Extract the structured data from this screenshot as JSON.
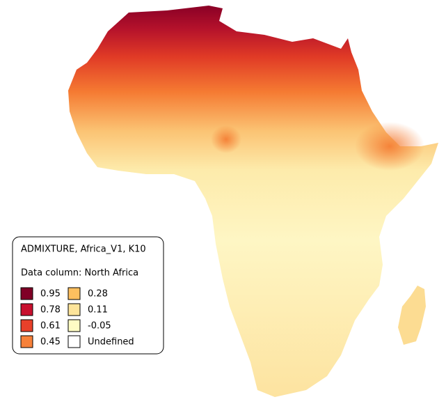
{
  "legend": {
    "title": "ADMIXTURE, Africa_V1, K10",
    "subtitle": "Data column: North Africa",
    "items": [
      {
        "label": "0.95",
        "color": "#800026"
      },
      {
        "label": "0.78",
        "color": "#c8102e"
      },
      {
        "label": "0.61",
        "color": "#e8402a"
      },
      {
        "label": "0.45",
        "color": "#f7813a"
      },
      {
        "label": "0.28",
        "color": "#fdbf5f"
      },
      {
        "label": "0.11",
        "color": "#fde49a"
      },
      {
        "label": "-0.05",
        "color": "#fefcc4"
      },
      {
        "label": "Undefined",
        "color": "#ffffff"
      }
    ]
  }
}
